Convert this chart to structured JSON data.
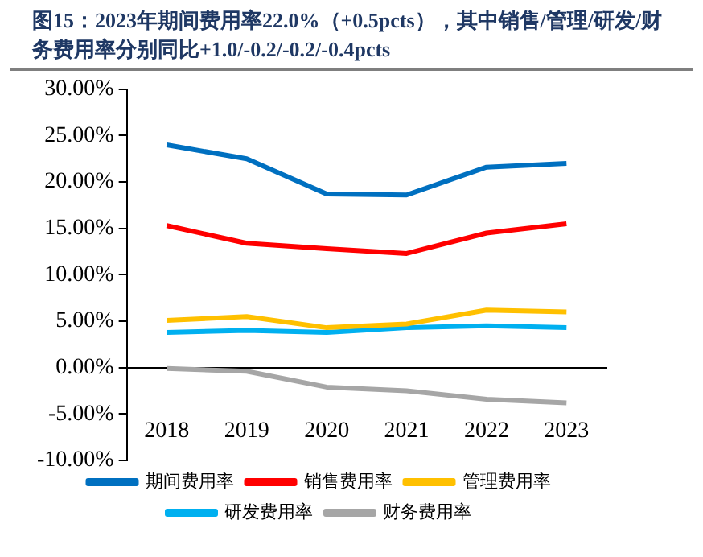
{
  "chart_data": {
    "type": "line",
    "title": "图15：2023年期间费用率22.0%（+0.5pcts），其中销售/管理/研发/财务费用率分别同比+1.0/-0.2/-0.2/-0.4pcts",
    "categories": [
      "2018",
      "2019",
      "2020",
      "2021",
      "2022",
      "2023"
    ],
    "series": [
      {
        "name": "期间费用率",
        "color": "#0070c0",
        "values": [
          24.0,
          22.5,
          18.7,
          18.6,
          21.6,
          22.0
        ]
      },
      {
        "name": "销售费用率",
        "color": "#ff0000",
        "values": [
          15.3,
          13.4,
          12.8,
          12.3,
          14.5,
          15.5
        ]
      },
      {
        "name": "管理费用率",
        "color": "#ffc000",
        "values": [
          5.1,
          5.5,
          4.3,
          4.7,
          6.2,
          6.0
        ]
      },
      {
        "name": "研发费用率",
        "color": "#00b0f0",
        "values": [
          3.8,
          4.0,
          3.8,
          4.3,
          4.5,
          4.3
        ]
      },
      {
        "name": "财务费用率",
        "color": "#a6a6a6",
        "values": [
          -0.1,
          -0.4,
          -2.1,
          -2.5,
          -3.4,
          -3.8
        ]
      }
    ],
    "ylim": [
      -10,
      30
    ],
    "yticks": [
      {
        "value": -10,
        "label": "-10.00%"
      },
      {
        "value": -5,
        "label": "-5.00%"
      },
      {
        "value": 0,
        "label": "0.00%"
      },
      {
        "value": 5,
        "label": "5.00%"
      },
      {
        "value": 10,
        "label": "10.00%"
      },
      {
        "value": 15,
        "label": "15.00%"
      },
      {
        "value": 20,
        "label": "20.00%"
      },
      {
        "value": 25,
        "label": "25.00%"
      },
      {
        "value": 30,
        "label": "30.00%"
      }
    ],
    "grid": false,
    "legend": "bottom",
    "marker": "none",
    "line_style": "solid"
  }
}
